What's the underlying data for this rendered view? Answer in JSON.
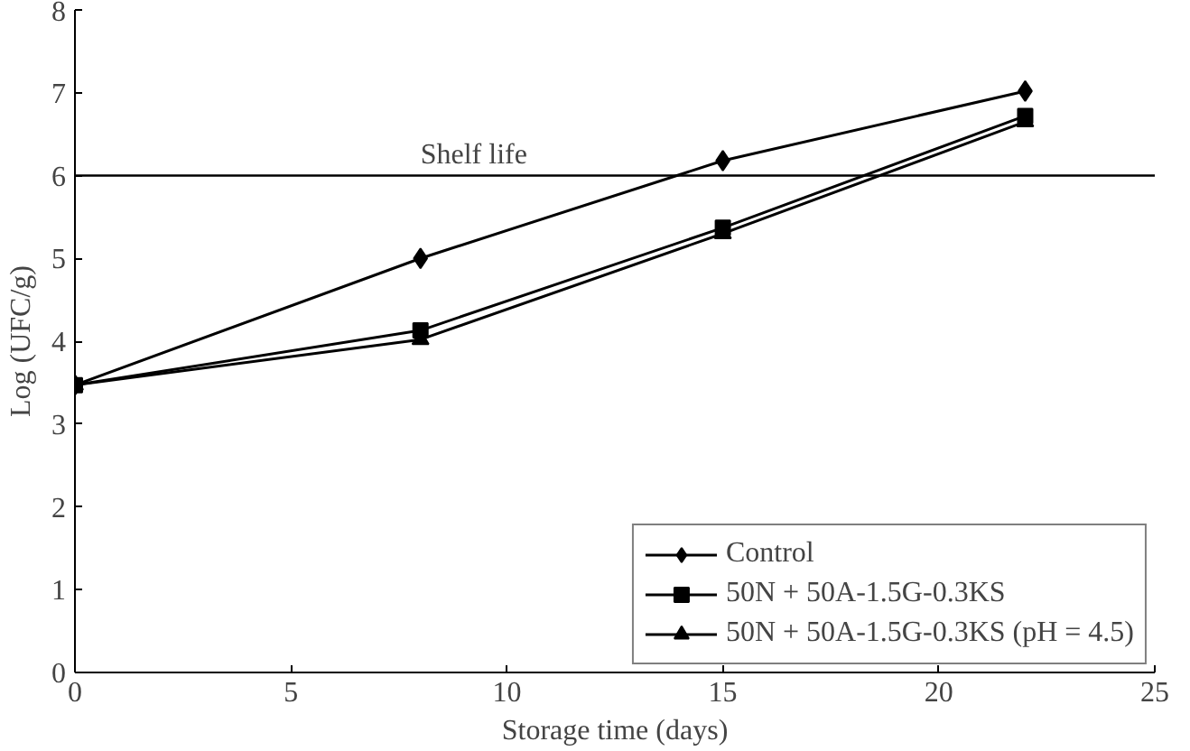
{
  "chart_data": {
    "type": "line",
    "xlabel": "Storage time (days)",
    "ylabel": "Log (UFC/g)",
    "x": [
      0,
      8,
      15,
      22
    ],
    "series": [
      {
        "name": "Control",
        "color": "#000000",
        "marker": "diamond",
        "values": [
          3.47,
          5.0,
          6.18,
          7.02
        ]
      },
      {
        "name": "50N + 50A-1.5G-0.3KS",
        "color": "#000000",
        "marker": "square",
        "values": [
          3.47,
          4.13,
          5.37,
          6.72
        ]
      },
      {
        "name": "50N + 50A-1.5G-0.3KS (pH = 4.5)",
        "color": "#000000",
        "marker": "triangle",
        "values": [
          3.47,
          4.02,
          5.3,
          6.65
        ]
      }
    ],
    "xlim": [
      0,
      25
    ],
    "ylim": [
      0,
      8
    ],
    "xticks": [
      0,
      5,
      10,
      15,
      20,
      25
    ],
    "yticks": [
      0,
      1,
      2,
      3,
      4,
      5,
      6,
      7,
      8
    ],
    "ref_lines": [
      {
        "axis": "y",
        "value": 6,
        "label": "Shelf life",
        "color": "#000000"
      }
    ],
    "grid": false,
    "legend": "bottom right",
    "line_style": "solid"
  }
}
